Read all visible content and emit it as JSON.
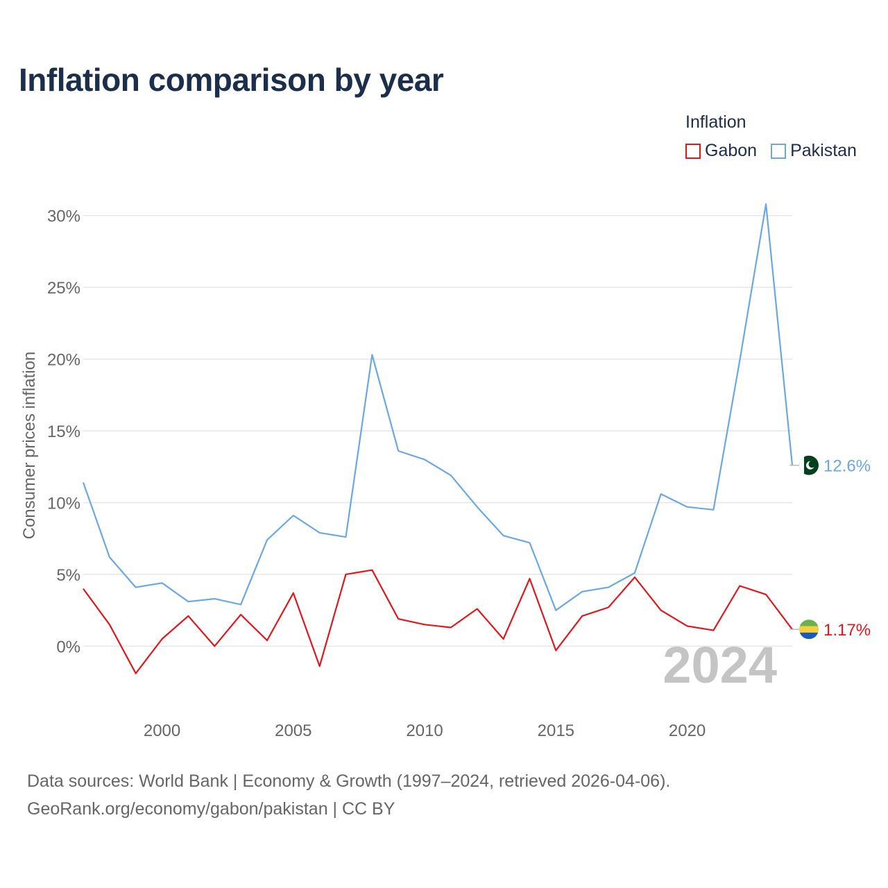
{
  "title": "Inflation comparison by year",
  "legend": {
    "title": "Inflation",
    "items": [
      {
        "name": "Gabon",
        "color": "#e3161b"
      },
      {
        "name": "Pakistan",
        "color": "#6aa8e4"
      }
    ]
  },
  "watermark_year": "2024",
  "source": {
    "line1": "Data sources: World Bank | Economy & Growth (1997–2024, retrieved 2026-04-06).",
    "line2": "GeoRank.org/economy/gabon/pakistan | CC BY"
  },
  "chart_data": {
    "type": "line",
    "title": "Inflation comparison by year",
    "xlabel": "",
    "ylabel": "Consumer prices inflation",
    "x": [
      1997,
      1998,
      1999,
      2000,
      2001,
      2002,
      2003,
      2004,
      2005,
      2006,
      2007,
      2008,
      2009,
      2010,
      2011,
      2012,
      2013,
      2014,
      2015,
      2016,
      2017,
      2018,
      2019,
      2020,
      2021,
      2022,
      2023,
      2024
    ],
    "xlim": [
      1997,
      2024
    ],
    "ylim": [
      -3.8,
      31
    ],
    "x_ticks": [
      2000,
      2005,
      2010,
      2015,
      2020
    ],
    "y_ticks": [
      0,
      5,
      10,
      15,
      20,
      25,
      30
    ],
    "y_tick_labels": [
      "0%",
      "5%",
      "10%",
      "15%",
      "20%",
      "25%",
      "30%"
    ],
    "grid": true,
    "series": [
      {
        "name": "Gabon",
        "color": "#e3161b",
        "end_label": "1.17%",
        "values": [
          4.0,
          1.5,
          -1.9,
          0.5,
          2.1,
          0.0,
          2.2,
          0.4,
          3.7,
          -1.4,
          5.0,
          5.3,
          1.9,
          1.5,
          1.3,
          2.6,
          0.5,
          4.7,
          -0.3,
          2.1,
          2.7,
          4.8,
          2.5,
          1.4,
          1.1,
          4.2,
          3.6,
          1.17
        ]
      },
      {
        "name": "Pakistan",
        "color": "#6aa8e4",
        "end_label": "12.6%",
        "values": [
          11.4,
          6.2,
          4.1,
          4.4,
          3.1,
          3.3,
          2.9,
          7.4,
          9.1,
          7.9,
          7.6,
          20.3,
          13.6,
          13.0,
          11.9,
          9.7,
          7.7,
          7.2,
          2.5,
          3.8,
          4.1,
          5.1,
          10.6,
          9.7,
          9.5,
          19.9,
          30.8,
          12.6
        ]
      }
    ]
  }
}
